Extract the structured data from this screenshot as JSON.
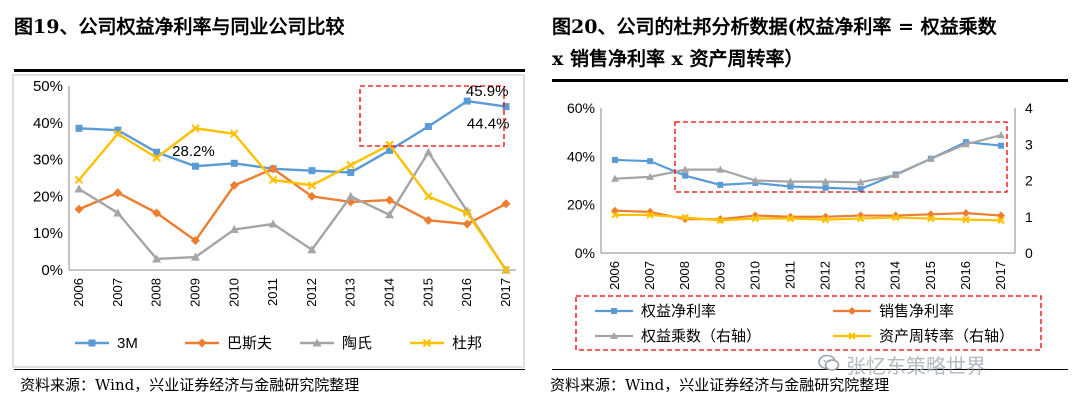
{
  "left": {
    "title": "图19、公司权益净利率与同业公司比较",
    "source": "资料来源：Wind，兴业证券经济与金融研究院整理"
  },
  "right": {
    "title_line1": "图20、公司的杜邦分析数据(权益净利率 = 权益乘数",
    "title_line2": "x 销售净利率 x 资产周转率）",
    "source": "资料来源：Wind，兴业证券经济与金融研究院整理"
  },
  "watermark": "张忆东策略世界",
  "chart_data": [
    {
      "type": "line",
      "title": "图19、公司权益净利率与同业公司比较",
      "categories": [
        "2006",
        "2007",
        "2008",
        "2009",
        "2010",
        "2011",
        "2012",
        "2013",
        "2014",
        "2015",
        "2016",
        "2017"
      ],
      "ylim": [
        0,
        50
      ],
      "yticks": [
        "0%",
        "10%",
        "20%",
        "30%",
        "40%",
        "50%"
      ],
      "grid": false,
      "legend_position": "bottom",
      "series": [
        {
          "name": "3M",
          "color": "#5b9bd5",
          "marker": "square",
          "values": [
            38.5,
            38,
            32,
            28.2,
            29,
            27.5,
            27,
            26.5,
            32.5,
            39,
            45.9,
            44.4
          ]
        },
        {
          "name": "巴斯夫",
          "color": "#ed7d31",
          "marker": "diamond",
          "values": [
            16.5,
            21,
            15.5,
            8,
            23,
            27.5,
            20,
            18.5,
            19,
            13.5,
            12.5,
            18
          ]
        },
        {
          "name": "陶氏",
          "color": "#a5a5a5",
          "marker": "triangle",
          "values": [
            22,
            15.5,
            3,
            3.5,
            11,
            12.5,
            5.5,
            20,
            15,
            32,
            16,
            0
          ]
        },
        {
          "name": "杜邦",
          "color": "#ffc000",
          "marker": "x",
          "values": [
            24.5,
            37,
            30.5,
            38.5,
            37,
            24.5,
            23,
            28.5,
            34,
            20,
            15.5,
            0
          ]
        }
      ],
      "annotations": [
        {
          "text": "28.2%",
          "x": "2009",
          "y": 28.2
        },
        {
          "text": "45.9%",
          "x": "2016",
          "y": 45.9
        },
        {
          "text": "44.4%",
          "x": "2017",
          "y": 44.4
        }
      ]
    },
    {
      "type": "line",
      "title": "图20、公司的杜邦分析数据(权益净利率 = 权益乘数 x 销售净利率 x 资产周转率）",
      "categories": [
        "2006",
        "2007",
        "2008",
        "2009",
        "2010",
        "2011",
        "2012",
        "2013",
        "2014",
        "2015",
        "2016",
        "2017"
      ],
      "ylim": [
        0,
        60
      ],
      "yticks": [
        "0%",
        "20%",
        "40%",
        "60%"
      ],
      "y2lim": [
        0,
        4
      ],
      "y2ticks": [
        "0",
        "1",
        "2",
        "3",
        "4"
      ],
      "grid": false,
      "legend_position": "bottom",
      "series": [
        {
          "name": "权益净利率",
          "axis": "left",
          "color": "#5b9bd5",
          "marker": "square",
          "values": [
            38.5,
            38,
            32,
            28.2,
            29,
            27.5,
            27,
            26.5,
            32.5,
            39,
            45.9,
            44.4
          ]
        },
        {
          "name": "销售净利率",
          "axis": "left",
          "color": "#ed7d31",
          "marker": "diamond",
          "values": [
            17.5,
            17,
            14,
            14,
            15.5,
            15,
            15,
            15.5,
            15.5,
            16,
            16.5,
            15.5
          ]
        },
        {
          "name": "权益乘数（右轴）",
          "axis": "right",
          "color": "#a5a5a5",
          "marker": "triangle",
          "values": [
            2.05,
            2.1,
            2.3,
            2.3,
            2.0,
            1.97,
            1.97,
            1.95,
            2.15,
            2.6,
            3.0,
            3.25
          ]
        },
        {
          "name": "资产周转率（右轴）",
          "axis": "right",
          "color": "#ffc000",
          "marker": "x",
          "values": [
            1.05,
            1.05,
            0.98,
            0.9,
            0.95,
            0.95,
            0.92,
            0.95,
            0.98,
            0.95,
            0.92,
            0.9
          ]
        }
      ]
    }
  ]
}
